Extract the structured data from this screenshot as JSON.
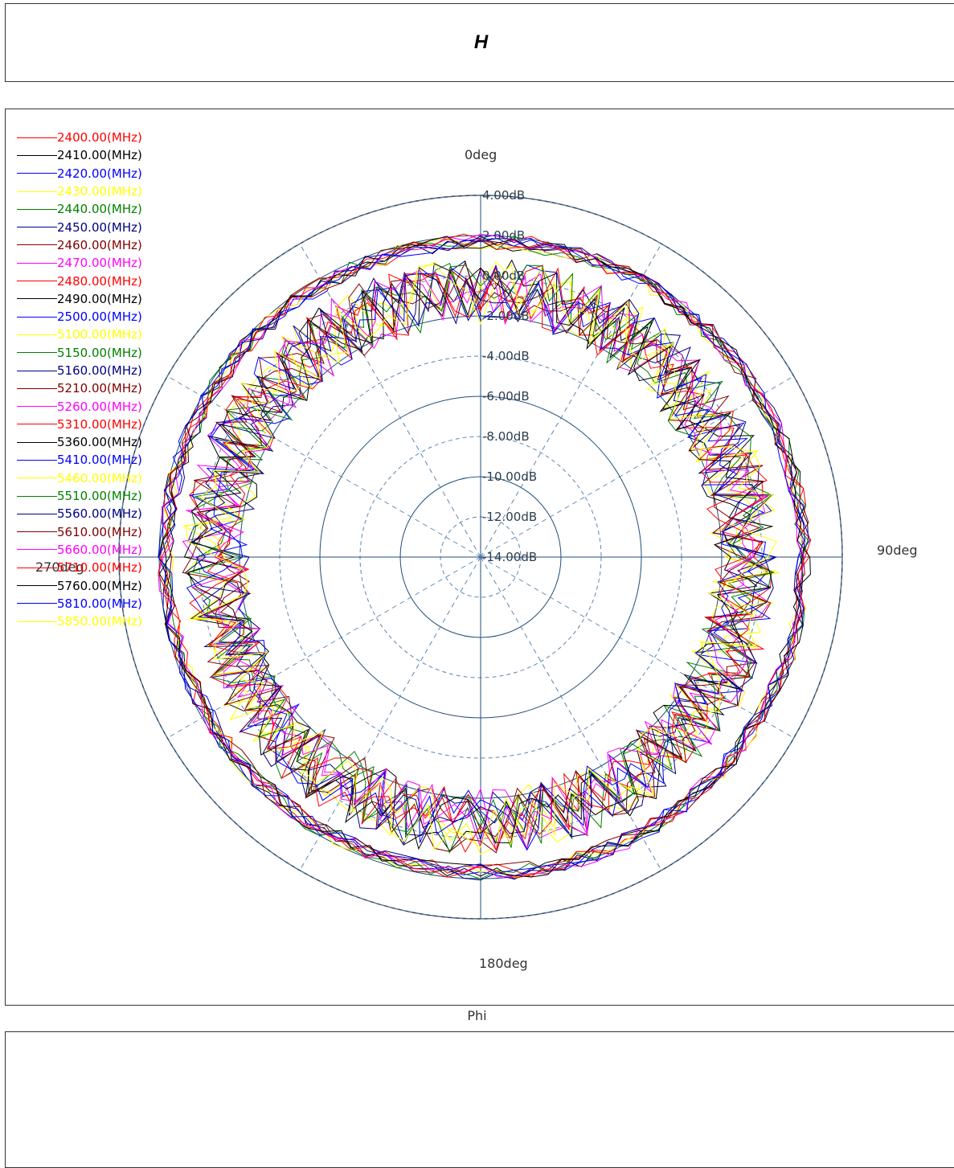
{
  "header": {
    "title": "H"
  },
  "footer": {
    "axis_label": "Phi"
  },
  "chart_data": {
    "type": "polar",
    "title": "H",
    "xlabel": "Phi",
    "angle_labels": [
      "0deg",
      "90deg",
      "180deg",
      "270deg"
    ],
    "radial_ticks": [
      "4.00dB",
      "2.00dB",
      "0.00dB",
      "-2.00dB",
      "-4.00dB",
      "-6.00dB",
      "-8.00dB",
      "-10.00dB",
      "-12.00dB",
      "-14.00dB"
    ],
    "rlim": [
      -14,
      4
    ],
    "grid": true,
    "legend_position": "top-left",
    "colors": {
      "grid": "#1f4e79",
      "grid_dash": "#5b86b0"
    },
    "series": [
      {
        "name": "2400.00(MHz)",
        "color": "#ff0000"
      },
      {
        "name": "2410.00(MHz)",
        "color": "#000000"
      },
      {
        "name": "2420.00(MHz)",
        "color": "#0000ff"
      },
      {
        "name": "2430.00(MHz)",
        "color": "#ffff00"
      },
      {
        "name": "2440.00(MHz)",
        "color": "#008000"
      },
      {
        "name": "2450.00(MHz)",
        "color": "#000080"
      },
      {
        "name": "2460.00(MHz)",
        "color": "#800000"
      },
      {
        "name": "2470.00(MHz)",
        "color": "#ff00ff"
      },
      {
        "name": "2480.00(MHz)",
        "color": "#ff0000"
      },
      {
        "name": "2490.00(MHz)",
        "color": "#000000"
      },
      {
        "name": "2500.00(MHz)",
        "color": "#0000ff"
      },
      {
        "name": "5100.00(MHz)",
        "color": "#ffff00"
      },
      {
        "name": "5150.00(MHz)",
        "color": "#008000"
      },
      {
        "name": "5160.00(MHz)",
        "color": "#000080"
      },
      {
        "name": "5210.00(MHz)",
        "color": "#800000"
      },
      {
        "name": "5260.00(MHz)",
        "color": "#ff00ff"
      },
      {
        "name": "5310.00(MHz)",
        "color": "#ff0000"
      },
      {
        "name": "5360.00(MHz)",
        "color": "#000000"
      },
      {
        "name": "5410.00(MHz)",
        "color": "#0000ff"
      },
      {
        "name": "5460.00(MHz)",
        "color": "#ffff00"
      },
      {
        "name": "5510.00(MHz)",
        "color": "#008000"
      },
      {
        "name": "5560.00(MHz)",
        "color": "#000080"
      },
      {
        "name": "5610.00(MHz)",
        "color": "#800000"
      },
      {
        "name": "5660.00(MHz)",
        "color": "#ff00ff"
      },
      {
        "name": "5710.00(MHz)",
        "color": "#ff0000"
      },
      {
        "name": "5760.00(MHz)",
        "color": "#000000"
      },
      {
        "name": "5810.00(MHz)",
        "color": "#0000ff"
      },
      {
        "name": "5850.00(MHz)",
        "color": "#ffff00"
      }
    ]
  }
}
